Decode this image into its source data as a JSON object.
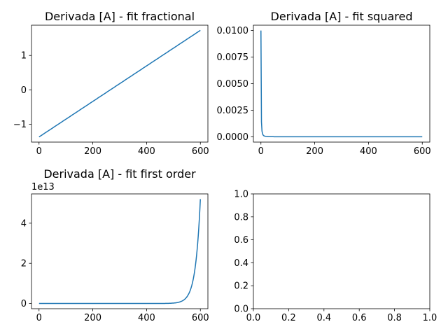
{
  "chart_data": [
    {
      "type": "line",
      "title": "Derivada [A] - fit fractional",
      "xlabel": "",
      "ylabel": "",
      "xlim": [
        -28,
        628
      ],
      "ylim": [
        -1.52,
        1.88
      ],
      "xticks": [
        0,
        200,
        400,
        600
      ],
      "xtick_labels": [
        "0",
        "200",
        "400",
        "600"
      ],
      "yticks": [
        -1,
        0,
        1
      ],
      "ytick_labels": [
        "−1",
        "0",
        "1"
      ],
      "offset_text": "",
      "grid": false,
      "series": [
        {
          "color": "#1f77b4",
          "shape": "linear",
          "x": [
            0,
            600
          ],
          "y": [
            -1.37,
            1.73
          ]
        }
      ]
    },
    {
      "type": "line",
      "title": "Derivada [A] - fit squared",
      "xlabel": "",
      "ylabel": "",
      "xlim": [
        -28,
        628
      ],
      "ylim": [
        -0.0005,
        0.0105
      ],
      "xticks": [
        0,
        200,
        400,
        600
      ],
      "xtick_labels": [
        "0",
        "200",
        "400",
        "600"
      ],
      "yticks": [
        0,
        0.0025,
        0.005,
        0.0075,
        0.01
      ],
      "ytick_labels": [
        "0.0000",
        "0.0025",
        "0.0050",
        "0.0075",
        "0.0100"
      ],
      "offset_text": "",
      "grid": false,
      "series": [
        {
          "color": "#1f77b4",
          "shape": "inverse_square",
          "x": [
            0,
            600
          ],
          "y": [
            0.01,
            0.0
          ]
        }
      ]
    },
    {
      "type": "line",
      "title": "Derivada [A] - fit first order",
      "xlabel": "",
      "ylabel": "",
      "xlim": [
        -28,
        628
      ],
      "ylim": [
        -0.26,
        5.46
      ],
      "xticks": [
        0,
        200,
        400,
        600
      ],
      "xtick_labels": [
        "0",
        "200",
        "400",
        "600"
      ],
      "yticks": [
        0,
        2,
        4
      ],
      "ytick_labels": [
        "0",
        "2",
        "4"
      ],
      "offset_text": "1e13",
      "grid": false,
      "series": [
        {
          "color": "#1f77b4",
          "shape": "exponential",
          "x": [
            0,
            600
          ],
          "y": [
            0.0,
            5.2
          ]
        }
      ]
    },
    {
      "type": "line",
      "title": "",
      "xlabel": "",
      "ylabel": "",
      "xlim": [
        0,
        1
      ],
      "ylim": [
        0,
        1
      ],
      "xticks": [
        0,
        0.2,
        0.4,
        0.6,
        0.8,
        1.0
      ],
      "xtick_labels": [
        "0.0",
        "0.2",
        "0.4",
        "0.6",
        "0.8",
        "1.0"
      ],
      "yticks": [
        0,
        0.2,
        0.4,
        0.6,
        0.8,
        1.0
      ],
      "ytick_labels": [
        "0.0",
        "0.2",
        "0.4",
        "0.6",
        "0.8",
        "1.0"
      ],
      "offset_text": "",
      "grid": false,
      "series": []
    }
  ]
}
